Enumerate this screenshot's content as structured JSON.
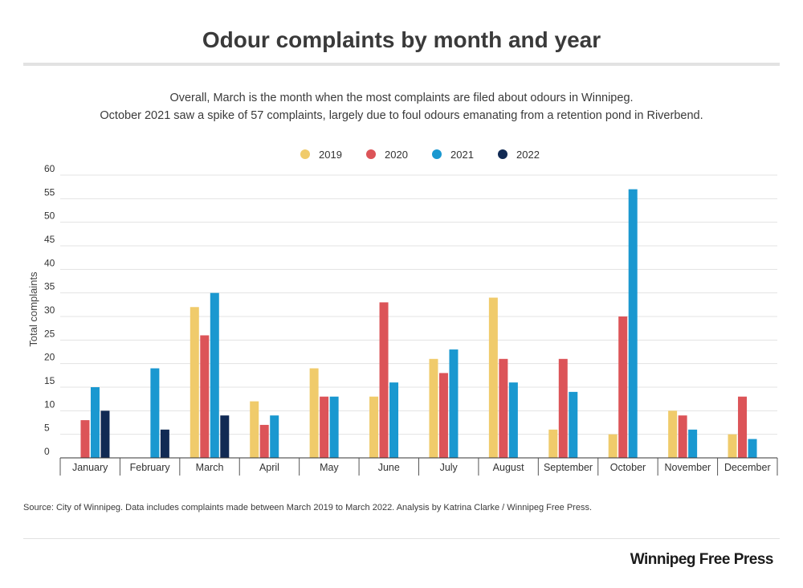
{
  "header": {
    "title": "Odour complaints by month and year",
    "subtitle_line1": "Overall, March is the month when the most complaints are filed about odours in Winnipeg.",
    "subtitle_line2": "October 2021 saw a spike of 57 complaints, largely due to foul odours emanating from a retention pond in Riverbend."
  },
  "chart_data": {
    "type": "bar",
    "title": "Odour complaints by month and year",
    "ylabel": "Total complaints",
    "xlabel": "",
    "ylim": [
      0,
      60
    ],
    "yticks": [
      0,
      5,
      10,
      15,
      20,
      25,
      30,
      35,
      40,
      45,
      50,
      55,
      60
    ],
    "grid": true,
    "legend_position": "top-center",
    "categories": [
      "January",
      "February",
      "March",
      "April",
      "May",
      "June",
      "July",
      "August",
      "September",
      "October",
      "November",
      "December"
    ],
    "series": [
      {
        "name": "2019",
        "color": "#f0cb6b",
        "values": [
          0,
          0,
          32,
          12,
          19,
          13,
          21,
          34,
          6,
          5,
          10,
          5
        ]
      },
      {
        "name": "2020",
        "color": "#dc5458",
        "values": [
          8,
          0,
          26,
          7,
          13,
          33,
          18,
          21,
          21,
          30,
          9,
          13
        ]
      },
      {
        "name": "2021",
        "color": "#1a98d0",
        "values": [
          15,
          19,
          35,
          9,
          13,
          16,
          23,
          16,
          14,
          57,
          6,
          4
        ]
      },
      {
        "name": "2022",
        "color": "#112a54",
        "values": [
          10,
          6,
          9,
          0,
          0,
          0,
          0,
          0,
          0,
          0,
          0,
          0
        ]
      }
    ]
  },
  "footer": {
    "source": "Source: City of Winnipeg.   Data includes complaints made between March 2019 to March 2022. Analysis by Katrina Clarke / Winnipeg Free Press.",
    "brand": "Winnipeg Free Press"
  }
}
